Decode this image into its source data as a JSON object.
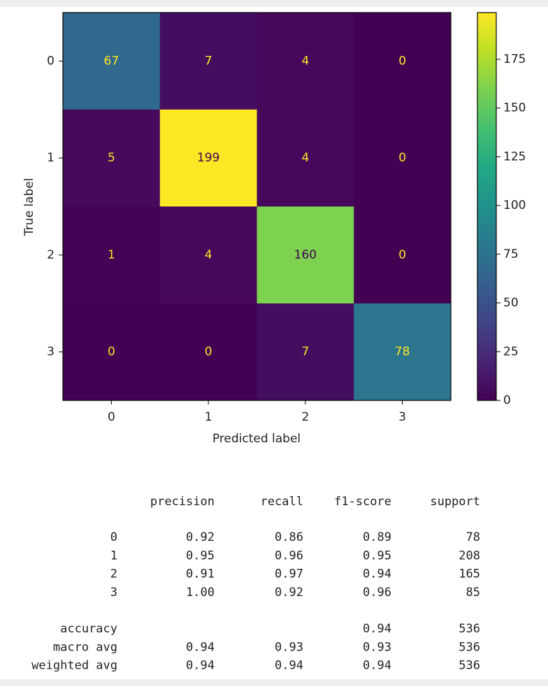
{
  "chart_data": {
    "type": "heatmap",
    "xlabel": "Predicted label",
    "ylabel": "True label",
    "x_categories": [
      "0",
      "1",
      "2",
      "3"
    ],
    "y_categories": [
      "0",
      "1",
      "2",
      "3"
    ],
    "values": [
      [
        67,
        7,
        4,
        0
      ],
      [
        5,
        199,
        4,
        0
      ],
      [
        1,
        4,
        160,
        0
      ],
      [
        0,
        0,
        7,
        78
      ]
    ],
    "colormap": "viridis",
    "clim": [
      0,
      199
    ],
    "colorbar_ticks": [
      0,
      25,
      50,
      75,
      100,
      125,
      150,
      175
    ]
  },
  "report": {
    "header": [
      "precision",
      "recall",
      "f1-score",
      "support"
    ],
    "rows": [
      [
        "0",
        "0.92",
        "0.86",
        "0.89",
        "78"
      ],
      [
        "1",
        "0.95",
        "0.96",
        "0.95",
        "208"
      ],
      [
        "2",
        "0.91",
        "0.97",
        "0.94",
        "165"
      ],
      [
        "3",
        "1.00",
        "0.92",
        "0.96",
        "85"
      ]
    ],
    "summary": [
      [
        "accuracy",
        null,
        null,
        "0.94",
        "536"
      ],
      [
        "macro avg",
        "0.94",
        "0.93",
        "0.93",
        "536"
      ],
      [
        "weighted avg",
        "0.94",
        "0.94",
        "0.94",
        "536"
      ]
    ]
  }
}
